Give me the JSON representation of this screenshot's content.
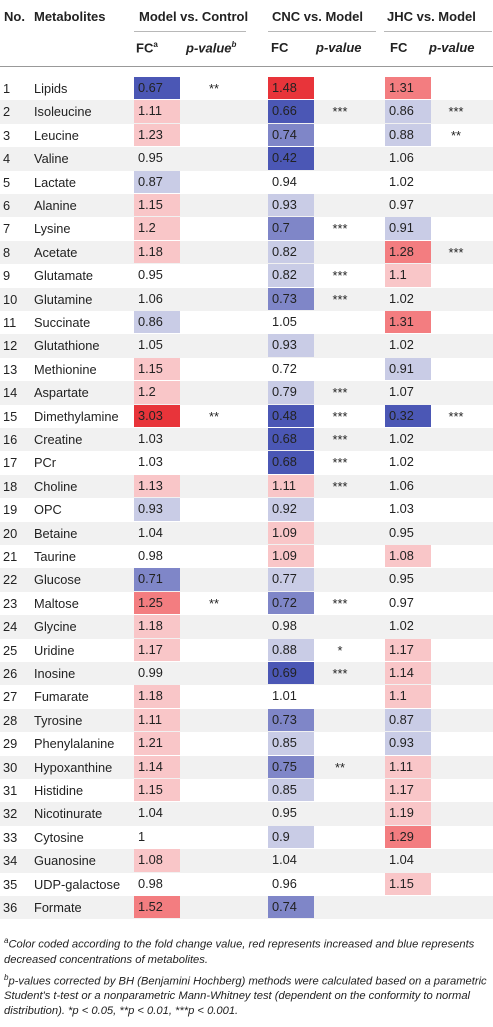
{
  "headers": {
    "no": "No.",
    "metabolites": "Metabolites",
    "group1": "Model vs. Control",
    "group2": "CNC vs. Model",
    "group3": "JHC vs. Model",
    "fc_label": "FC",
    "fc_sup": "a",
    "p_label": "p-value",
    "p_sup": "b"
  },
  "colors": {
    "red_strong": "#e8343a",
    "red_mid": "#f37d80",
    "red_light": "#f9c6c8",
    "blue_strong": "#4b57b5",
    "blue_mid": "#7f86c8",
    "blue_light": "#c9cce6",
    "row_alt": "#f1f1f1"
  },
  "rows": [
    {
      "no": "1",
      "name": "Lipids",
      "fc1": "0.67",
      "c1": "bs",
      "p1": "**",
      "fc2": "1.48",
      "c2": "rs",
      "p2": "",
      "fc3": "1.31",
      "c3": "rm",
      "p3": ""
    },
    {
      "no": "2",
      "name": "Isoleucine",
      "fc1": "1.11",
      "c1": "rl",
      "p1": "",
      "fc2": "0.66",
      "c2": "bs",
      "p2": "***",
      "fc3": "0.86",
      "c3": "bl",
      "p3": "***"
    },
    {
      "no": "3",
      "name": "Leucine",
      "fc1": "1.23",
      "c1": "rl",
      "p1": "",
      "fc2": "0.74",
      "c2": "bm",
      "p2": "",
      "fc3": "0.88",
      "c3": "bl",
      "p3": "**"
    },
    {
      "no": "4",
      "name": "Valine",
      "fc1": "0.95",
      "c1": "",
      "p1": "",
      "fc2": "0.42",
      "c2": "bs",
      "p2": "",
      "fc3": "1.06",
      "c3": "",
      "p3": ""
    },
    {
      "no": "5",
      "name": "Lactate",
      "fc1": "0.87",
      "c1": "bl",
      "p1": "",
      "fc2": "0.94",
      "c2": "",
      "p2": "",
      "fc3": "1.02",
      "c3": "",
      "p3": ""
    },
    {
      "no": "6",
      "name": "Alanine",
      "fc1": "1.15",
      "c1": "rl",
      "p1": "",
      "fc2": "0.93",
      "c2": "bl",
      "p2": "",
      "fc3": "0.97",
      "c3": "",
      "p3": ""
    },
    {
      "no": "7",
      "name": "Lysine",
      "fc1": "1.2",
      "c1": "rl",
      "p1": "",
      "fc2": "0.7",
      "c2": "bm",
      "p2": "***",
      "fc3": "0.91",
      "c3": "bl",
      "p3": ""
    },
    {
      "no": "8",
      "name": "Acetate",
      "fc1": "1.18",
      "c1": "rl",
      "p1": "",
      "fc2": "0.82",
      "c2": "bl",
      "p2": "",
      "fc3": "1.28",
      "c3": "rm",
      "p3": "***"
    },
    {
      "no": "9",
      "name": "Glutamate",
      "fc1": "0.95",
      "c1": "",
      "p1": "",
      "fc2": "0.82",
      "c2": "bl",
      "p2": "***",
      "fc3": "1.1",
      "c3": "rl",
      "p3": ""
    },
    {
      "no": "10",
      "name": "Glutamine",
      "fc1": "1.06",
      "c1": "",
      "p1": "",
      "fc2": "0.73",
      "c2": "bm",
      "p2": "***",
      "fc3": "1.02",
      "c3": "",
      "p3": ""
    },
    {
      "no": "11",
      "name": "Succinate",
      "fc1": "0.86",
      "c1": "bl",
      "p1": "",
      "fc2": "1.05",
      "c2": "",
      "p2": "",
      "fc3": "1.31",
      "c3": "rm",
      "p3": ""
    },
    {
      "no": "12",
      "name": "Glutathione",
      "fc1": "1.05",
      "c1": "",
      "p1": "",
      "fc2": "0.93",
      "c2": "bl",
      "p2": "",
      "fc3": "1.02",
      "c3": "",
      "p3": ""
    },
    {
      "no": "13",
      "name": "Methionine",
      "fc1": "1.15",
      "c1": "rl",
      "p1": "",
      "fc2": "0.72",
      "c2": "",
      "p2": "",
      "fc3": "0.91",
      "c3": "bl",
      "p3": ""
    },
    {
      "no": "14",
      "name": "Aspartate",
      "fc1": "1.2",
      "c1": "rl",
      "p1": "",
      "fc2": "0.79",
      "c2": "bl",
      "p2": "***",
      "fc3": "1.07",
      "c3": "",
      "p3": ""
    },
    {
      "no": "15",
      "name": "Dimethylamine",
      "fc1": "3.03",
      "c1": "rs",
      "p1": "**",
      "fc2": "0.48",
      "c2": "bs",
      "p2": "***",
      "fc3": "0.32",
      "c3": "bs",
      "p3": "***"
    },
    {
      "no": "16",
      "name": "Creatine",
      "fc1": "1.03",
      "c1": "",
      "p1": "",
      "fc2": "0.68",
      "c2": "bs",
      "p2": "***",
      "fc3": "1.02",
      "c3": "",
      "p3": ""
    },
    {
      "no": "17",
      "name": "PCr",
      "fc1": "1.03",
      "c1": "",
      "p1": "",
      "fc2": "0.68",
      "c2": "bs",
      "p2": "***",
      "fc3": "1.02",
      "c3": "",
      "p3": ""
    },
    {
      "no": "18",
      "name": "Choline",
      "fc1": "1.13",
      "c1": "rl",
      "p1": "",
      "fc2": "1.11",
      "c2": "rl",
      "p2": "***",
      "fc3": "1.06",
      "c3": "",
      "p3": ""
    },
    {
      "no": "19",
      "name": "OPC",
      "fc1": "0.93",
      "c1": "bl",
      "p1": "",
      "fc2": "0.92",
      "c2": "bl",
      "p2": "",
      "fc3": "1.03",
      "c3": "",
      "p3": ""
    },
    {
      "no": "20",
      "name": "Betaine",
      "fc1": "1.04",
      "c1": "",
      "p1": "",
      "fc2": "1.09",
      "c2": "rl",
      "p2": "",
      "fc3": "0.95",
      "c3": "",
      "p3": ""
    },
    {
      "no": "21",
      "name": "Taurine",
      "fc1": "0.98",
      "c1": "",
      "p1": "",
      "fc2": "1.09",
      "c2": "rl",
      "p2": "",
      "fc3": "1.08",
      "c3": "rl",
      "p3": ""
    },
    {
      "no": "22",
      "name": "Glucose",
      "fc1": "0.71",
      "c1": "bm",
      "p1": "",
      "fc2": "0.77",
      "c2": "bl",
      "p2": "",
      "fc3": "0.95",
      "c3": "",
      "p3": ""
    },
    {
      "no": "23",
      "name": "Maltose",
      "fc1": "1.25",
      "c1": "rm",
      "p1": "**",
      "fc2": "0.72",
      "c2": "bm",
      "p2": "***",
      "fc3": "0.97",
      "c3": "",
      "p3": ""
    },
    {
      "no": "24",
      "name": "Glycine",
      "fc1": "1.18",
      "c1": "rl",
      "p1": "",
      "fc2": "0.98",
      "c2": "",
      "p2": "",
      "fc3": "1.02",
      "c3": "",
      "p3": ""
    },
    {
      "no": "25",
      "name": "Uridine",
      "fc1": "1.17",
      "c1": "rl",
      "p1": "",
      "fc2": "0.88",
      "c2": "bl",
      "p2": "*",
      "fc3": "1.17",
      "c3": "rl",
      "p3": ""
    },
    {
      "no": "26",
      "name": "Inosine",
      "fc1": "0.99",
      "c1": "",
      "p1": "",
      "fc2": "0.69",
      "c2": "bs",
      "p2": "***",
      "fc3": "1.14",
      "c3": "rl",
      "p3": ""
    },
    {
      "no": "27",
      "name": "Fumarate",
      "fc1": "1.18",
      "c1": "rl",
      "p1": "",
      "fc2": "1.01",
      "c2": "",
      "p2": "",
      "fc3": "1.1",
      "c3": "rl",
      "p3": ""
    },
    {
      "no": "28",
      "name": "Tyrosine",
      "fc1": "1.11",
      "c1": "rl",
      "p1": "",
      "fc2": "0.73",
      "c2": "bm",
      "p2": "",
      "fc3": "0.87",
      "c3": "bl",
      "p3": ""
    },
    {
      "no": "29",
      "name": "Phenylalanine",
      "fc1": "1.21",
      "c1": "rl",
      "p1": "",
      "fc2": "0.85",
      "c2": "bl",
      "p2": "",
      "fc3": "0.93",
      "c3": "bl",
      "p3": ""
    },
    {
      "no": "30",
      "name": "Hypoxanthine",
      "fc1": "1.14",
      "c1": "rl",
      "p1": "",
      "fc2": "0.75",
      "c2": "bm",
      "p2": "**",
      "fc3": "1.11",
      "c3": "rl",
      "p3": ""
    },
    {
      "no": "31",
      "name": "Histidine",
      "fc1": "1.15",
      "c1": "rl",
      "p1": "",
      "fc2": "0.85",
      "c2": "bl",
      "p2": "",
      "fc3": "1.17",
      "c3": "rl",
      "p3": ""
    },
    {
      "no": "32",
      "name": "Nicotinurate",
      "fc1": "1.04",
      "c1": "",
      "p1": "",
      "fc2": "0.95",
      "c2": "",
      "p2": "",
      "fc3": "1.19",
      "c3": "rl",
      "p3": ""
    },
    {
      "no": "33",
      "name": "Cytosine",
      "fc1": "1",
      "c1": "",
      "p1": "",
      "fc2": "0.9",
      "c2": "bl",
      "p2": "",
      "fc3": "1.29",
      "c3": "rm",
      "p3": ""
    },
    {
      "no": "34",
      "name": "Guanosine",
      "fc1": "1.08",
      "c1": "rl",
      "p1": "",
      "fc2": "1.04",
      "c2": "",
      "p2": "",
      "fc3": "1.04",
      "c3": "",
      "p3": ""
    },
    {
      "no": "35",
      "name": "UDP-galactose",
      "fc1": "0.98",
      "c1": "",
      "p1": "",
      "fc2": "0.96",
      "c2": "",
      "p2": "",
      "fc3": "1.15",
      "c3": "rl",
      "p3": ""
    },
    {
      "no": "36",
      "name": "Formate",
      "fc1": "1.52",
      "c1": "rm",
      "p1": "",
      "fc2": "0.74",
      "c2": "bm",
      "p2": "",
      "fc3": "",
      "c3": "",
      "p3": ""
    }
  ],
  "footnotes": {
    "a_mark": "a",
    "a_text": "Color coded according to the fold change value, red represents increased and blue represents decreased concentrations of metabolites.",
    "b_mark": "b",
    "b_text": "p-values corrected by BH (Benjamini Hochberg) methods were calculated based on a parametric Student's t-test or a nonparametric Mann-Whitney test (dependent on the conformity to normal distribution). *p < 0.05, **p < 0.01, ***p < 0.001."
  }
}
